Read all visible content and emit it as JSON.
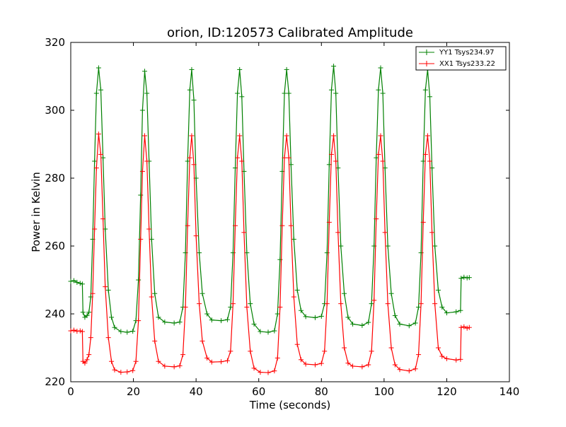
{
  "chart_data": {
    "type": "line",
    "title": "orion, ID:120573 Calibrated Amplitude",
    "xlabel": "Time (seconds)",
    "ylabel": "Power in Kelvin",
    "xlim": [
      0,
      140
    ],
    "ylim": [
      220,
      320
    ],
    "xticks": [
      0,
      20,
      40,
      60,
      80,
      100,
      120,
      140
    ],
    "yticks": [
      220,
      240,
      260,
      280,
      300,
      320
    ],
    "grid": false,
    "legend_position": "top-right",
    "marker": "+",
    "series": [
      {
        "name": "YY1 Tsys234.97",
        "color": "#008000",
        "points": [
          [
            0.0,
            249.6
          ],
          [
            1.0,
            249.8
          ],
          [
            2.0,
            249.3
          ],
          [
            3.0,
            249.0
          ],
          [
            3.7,
            248.8
          ],
          [
            3.9,
            240.5
          ],
          [
            4.5,
            239.0
          ],
          [
            5.2,
            239.5
          ],
          [
            5.8,
            240.5
          ],
          [
            6.4,
            245.0
          ],
          [
            7.0,
            262.0
          ],
          [
            7.6,
            285.0
          ],
          [
            8.2,
            305.0
          ],
          [
            8.9,
            312.5
          ],
          [
            9.6,
            306.0
          ],
          [
            10.3,
            286.0
          ],
          [
            11.0,
            265.0
          ],
          [
            12.0,
            247.0
          ],
          [
            13.0,
            239.0
          ],
          [
            14.0,
            236.0
          ],
          [
            16.0,
            234.8
          ],
          [
            18.0,
            234.6
          ],
          [
            19.8,
            234.9
          ],
          [
            20.8,
            238.0
          ],
          [
            21.6,
            250.0
          ],
          [
            22.3,
            275.0
          ],
          [
            22.9,
            300.0
          ],
          [
            23.6,
            311.5
          ],
          [
            24.3,
            305.0
          ],
          [
            25.0,
            285.0
          ],
          [
            25.8,
            262.0
          ],
          [
            26.8,
            246.0
          ],
          [
            28.0,
            239.0
          ],
          [
            30.0,
            237.6
          ],
          [
            33.0,
            237.3
          ],
          [
            34.8,
            237.6
          ],
          [
            35.8,
            242.0
          ],
          [
            36.6,
            258.0
          ],
          [
            37.3,
            285.0
          ],
          [
            38.0,
            306.0
          ],
          [
            38.6,
            312.0
          ],
          [
            39.3,
            303.0
          ],
          [
            40.0,
            280.0
          ],
          [
            41.0,
            258.0
          ],
          [
            42.0,
            246.0
          ],
          [
            43.5,
            240.0
          ],
          [
            45.0,
            238.2
          ],
          [
            48.0,
            238.0
          ],
          [
            50.0,
            238.3
          ],
          [
            51.0,
            242.0
          ],
          [
            51.8,
            258.0
          ],
          [
            52.5,
            283.0
          ],
          [
            53.2,
            305.0
          ],
          [
            53.9,
            312.0
          ],
          [
            54.6,
            304.0
          ],
          [
            55.3,
            282.0
          ],
          [
            56.2,
            258.0
          ],
          [
            57.3,
            243.0
          ],
          [
            58.5,
            237.0
          ],
          [
            60.5,
            234.8
          ],
          [
            63.0,
            234.6
          ],
          [
            65.0,
            235.0
          ],
          [
            66.0,
            240.0
          ],
          [
            66.8,
            256.0
          ],
          [
            67.5,
            282.0
          ],
          [
            68.2,
            305.0
          ],
          [
            68.9,
            312.0
          ],
          [
            69.6,
            305.0
          ],
          [
            70.3,
            284.0
          ],
          [
            71.2,
            262.0
          ],
          [
            72.3,
            247.0
          ],
          [
            73.5,
            241.0
          ],
          [
            75.0,
            239.2
          ],
          [
            78.0,
            238.9
          ],
          [
            80.0,
            239.3
          ],
          [
            81.0,
            243.0
          ],
          [
            81.8,
            258.0
          ],
          [
            82.5,
            284.0
          ],
          [
            83.2,
            306.0
          ],
          [
            83.9,
            313.0
          ],
          [
            84.6,
            305.0
          ],
          [
            85.3,
            283.0
          ],
          [
            86.2,
            260.0
          ],
          [
            87.3,
            246.0
          ],
          [
            88.5,
            239.0
          ],
          [
            90.0,
            237.0
          ],
          [
            93.0,
            236.6
          ],
          [
            95.0,
            237.5
          ],
          [
            96.0,
            243.0
          ],
          [
            96.8,
            260.0
          ],
          [
            97.5,
            286.0
          ],
          [
            98.2,
            306.0
          ],
          [
            98.9,
            312.5
          ],
          [
            99.6,
            305.0
          ],
          [
            100.3,
            283.0
          ],
          [
            101.2,
            260.0
          ],
          [
            102.3,
            246.0
          ],
          [
            103.5,
            239.5
          ],
          [
            105.0,
            237.0
          ],
          [
            108.0,
            236.5
          ],
          [
            110.0,
            237.3
          ],
          [
            111.0,
            242.0
          ],
          [
            111.8,
            258.0
          ],
          [
            112.5,
            285.0
          ],
          [
            113.2,
            306.0
          ],
          [
            113.9,
            312.0
          ],
          [
            114.6,
            304.0
          ],
          [
            115.3,
            283.0
          ],
          [
            116.2,
            260.0
          ],
          [
            117.3,
            247.0
          ],
          [
            118.5,
            242.0
          ],
          [
            120.0,
            240.3
          ],
          [
            123.0,
            240.6
          ],
          [
            124.4,
            241.0
          ],
          [
            124.6,
            250.5
          ],
          [
            125.5,
            250.8
          ],
          [
            126.5,
            250.6
          ],
          [
            127.2,
            250.7
          ]
        ]
      },
      {
        "name": "XX1 Tsys233.22",
        "color": "#ff0000",
        "points": [
          [
            0.0,
            235.0
          ],
          [
            1.0,
            235.2
          ],
          [
            2.0,
            234.9
          ],
          [
            3.0,
            235.0
          ],
          [
            3.7,
            234.8
          ],
          [
            3.9,
            226.0
          ],
          [
            4.5,
            225.5
          ],
          [
            5.2,
            226.5
          ],
          [
            5.8,
            228.0
          ],
          [
            6.4,
            233.0
          ],
          [
            7.0,
            246.0
          ],
          [
            7.6,
            265.0
          ],
          [
            8.2,
            283.0
          ],
          [
            8.9,
            293.0
          ],
          [
            9.6,
            287.0
          ],
          [
            10.3,
            268.0
          ],
          [
            11.0,
            248.0
          ],
          [
            12.0,
            233.0
          ],
          [
            13.0,
            226.0
          ],
          [
            14.0,
            223.5
          ],
          [
            16.0,
            222.8
          ],
          [
            18.0,
            222.9
          ],
          [
            19.8,
            223.3
          ],
          [
            20.8,
            226.0
          ],
          [
            21.6,
            238.0
          ],
          [
            22.3,
            262.0
          ],
          [
            22.9,
            282.0
          ],
          [
            23.6,
            292.5
          ],
          [
            24.3,
            285.0
          ],
          [
            25.0,
            265.0
          ],
          [
            25.8,
            245.0
          ],
          [
            26.8,
            232.0
          ],
          [
            28.0,
            226.0
          ],
          [
            30.0,
            224.6
          ],
          [
            33.0,
            224.4
          ],
          [
            34.8,
            224.7
          ],
          [
            35.8,
            228.0
          ],
          [
            36.6,
            242.0
          ],
          [
            37.3,
            266.0
          ],
          [
            38.0,
            286.0
          ],
          [
            38.6,
            292.5
          ],
          [
            39.3,
            284.0
          ],
          [
            40.0,
            263.0
          ],
          [
            41.0,
            243.0
          ],
          [
            42.0,
            232.0
          ],
          [
            43.5,
            227.0
          ],
          [
            45.0,
            225.8
          ],
          [
            48.0,
            225.9
          ],
          [
            50.0,
            226.2
          ],
          [
            51.0,
            229.0
          ],
          [
            51.8,
            243.0
          ],
          [
            52.5,
            266.0
          ],
          [
            53.2,
            286.0
          ],
          [
            53.9,
            292.5
          ],
          [
            54.6,
            285.0
          ],
          [
            55.3,
            264.0
          ],
          [
            56.2,
            242.0
          ],
          [
            57.3,
            229.0
          ],
          [
            58.5,
            224.0
          ],
          [
            60.5,
            222.8
          ],
          [
            63.0,
            222.7
          ],
          [
            65.0,
            223.2
          ],
          [
            66.0,
            227.0
          ],
          [
            66.8,
            242.0
          ],
          [
            67.5,
            266.0
          ],
          [
            68.2,
            286.0
          ],
          [
            68.9,
            292.5
          ],
          [
            69.6,
            286.0
          ],
          [
            70.3,
            266.0
          ],
          [
            71.2,
            245.0
          ],
          [
            72.3,
            231.0
          ],
          [
            73.5,
            226.5
          ],
          [
            75.0,
            225.2
          ],
          [
            78.0,
            225.0
          ],
          [
            80.0,
            225.4
          ],
          [
            81.0,
            229.0
          ],
          [
            81.8,
            243.0
          ],
          [
            82.5,
            267.0
          ],
          [
            83.2,
            287.0
          ],
          [
            83.9,
            292.5
          ],
          [
            84.6,
            285.0
          ],
          [
            85.3,
            264.0
          ],
          [
            86.2,
            243.0
          ],
          [
            87.3,
            230.0
          ],
          [
            88.5,
            225.5
          ],
          [
            90.0,
            224.6
          ],
          [
            93.0,
            224.4
          ],
          [
            95.0,
            225.0
          ],
          [
            96.0,
            229.0
          ],
          [
            96.8,
            244.0
          ],
          [
            97.5,
            268.0
          ],
          [
            98.2,
            287.0
          ],
          [
            98.9,
            292.5
          ],
          [
            99.6,
            285.0
          ],
          [
            100.3,
            264.0
          ],
          [
            101.2,
            243.0
          ],
          [
            102.3,
            230.0
          ],
          [
            103.5,
            225.0
          ],
          [
            105.0,
            223.6
          ],
          [
            108.0,
            223.2
          ],
          [
            110.0,
            223.8
          ],
          [
            111.0,
            228.0
          ],
          [
            111.8,
            243.0
          ],
          [
            112.5,
            267.0
          ],
          [
            113.2,
            287.0
          ],
          [
            113.9,
            292.5
          ],
          [
            114.6,
            285.0
          ],
          [
            115.3,
            264.0
          ],
          [
            116.2,
            243.0
          ],
          [
            117.3,
            230.0
          ],
          [
            118.5,
            227.5
          ],
          [
            120.0,
            226.8
          ],
          [
            123.0,
            226.4
          ],
          [
            124.4,
            226.6
          ],
          [
            124.6,
            236.0
          ],
          [
            125.5,
            236.2
          ],
          [
            126.5,
            235.8
          ],
          [
            127.2,
            236.0
          ]
        ]
      }
    ]
  }
}
